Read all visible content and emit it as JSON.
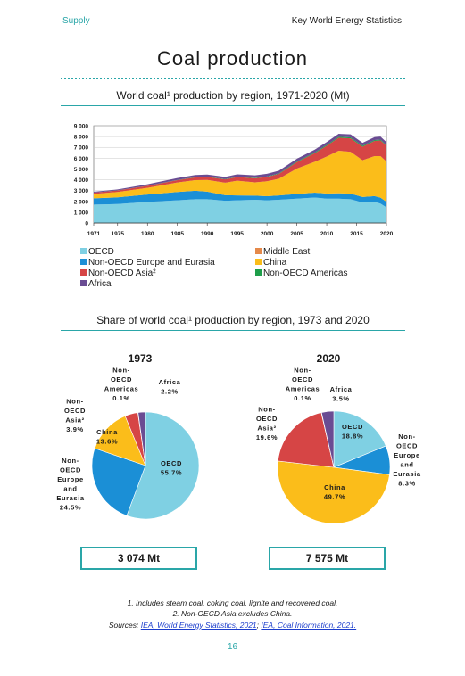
{
  "header": {
    "left": "Supply",
    "right": "Key World Energy Statistics"
  },
  "title": "Coal production",
  "area_chart": {
    "title": "World coal¹ production by region, 1971-2020 (Mt)",
    "colors": {
      "OECD": "#7fd0e3",
      "Middle East": "#e5894a",
      "Non-OECD Europe and Eurasia": "#1b8fd6",
      "China": "#fbbd1a",
      "Non-OECD Asia²": "#d64545",
      "Non-OECD Americas": "#1e9e4a",
      "Africa": "#6a4c93"
    }
  },
  "legend": {
    "items": [
      {
        "label": "OECD",
        "color": "#7fd0e3"
      },
      {
        "label": "Middle East",
        "color": "#e5894a"
      },
      {
        "label": "Non-OECD Europe and Eurasia",
        "color": "#1b8fd6"
      },
      {
        "label": "China",
        "color": "#fbbd1a"
      },
      {
        "label": "Non-OECD Asia²",
        "color": "#d64545"
      },
      {
        "label": "Non-OECD Americas",
        "color": "#1e9e4a"
      },
      {
        "label": "Africa",
        "color": "#6a4c93"
      }
    ]
  },
  "pie_section": {
    "title": "Share of world coal¹ production by region, 1973 and 2020"
  },
  "totals": {
    "y1973": "3 074 Mt",
    "y2020": "7 575 Mt"
  },
  "notes": {
    "n1": "1. Includes steam coal, coking coal, lignite and recovered coal.",
    "n2": "2. Non-OECD Asia excludes China.",
    "sources_prefix": "Sources: ",
    "src1": "IEA, World Energy Statistics, 2021",
    "sep": "; ",
    "src2": "IEA, Coal Information, 2021."
  },
  "page_number": "16",
  "chart_data": [
    {
      "type": "area",
      "stacked": true,
      "title": "World coal¹ production by region, 1971-2020 (Mt)",
      "x": [
        1971,
        1975,
        1980,
        1985,
        1988,
        1990,
        1993,
        1995,
        1998,
        2000,
        2002,
        2005,
        2008,
        2010,
        2012,
        2014,
        2016,
        2018,
        2019,
        2020
      ],
      "x_ticks": [
        1971,
        1975,
        1980,
        1985,
        1990,
        1995,
        2000,
        2005,
        2010,
        2015,
        2020
      ],
      "ylim": [
        0,
        9000
      ],
      "y_ticks": [
        0,
        1000,
        2000,
        3000,
        4000,
        5000,
        6000,
        7000,
        8000,
        9000
      ],
      "y_tick_labels": [
        "0",
        "1 000",
        "2 000",
        "3 000",
        "4 000",
        "5 000",
        "6 000",
        "7 000",
        "8 000",
        "9 000"
      ],
      "series": [
        {
          "name": "OECD",
          "color": "#7fd0e3",
          "values": [
            1700,
            1750,
            1950,
            2100,
            2200,
            2200,
            2050,
            2100,
            2150,
            2100,
            2150,
            2250,
            2350,
            2250,
            2250,
            2200,
            1900,
            1950,
            1800,
            1450
          ]
        },
        {
          "name": "Non-OECD Europe and Eurasia",
          "color": "#1b8fd6",
          "values": [
            580,
            620,
            680,
            770,
            780,
            700,
            520,
            450,
            380,
            380,
            400,
            430,
            460,
            470,
            500,
            510,
            500,
            540,
            540,
            510
          ]
        },
        {
          "name": "Middle East",
          "color": "#e5894a",
          "values": [
            2,
            2,
            2,
            2,
            2,
            2,
            2,
            2,
            2,
            2,
            2,
            2,
            2,
            2,
            2,
            2,
            2,
            2,
            2,
            2
          ]
        },
        {
          "name": "China",
          "color": "#fbbd1a",
          "values": [
            400,
            500,
            620,
            870,
            980,
            1080,
            1150,
            1360,
            1230,
            1380,
            1550,
            2350,
            2850,
            3430,
            3940,
            3870,
            3410,
            3700,
            3850,
            3720
          ]
        },
        {
          "name": "Non-OECD Asia²",
          "color": "#d64545",
          "values": [
            120,
            140,
            180,
            220,
            260,
            280,
            310,
            340,
            380,
            400,
            440,
            600,
            800,
            1000,
            1200,
            1250,
            1250,
            1400,
            1450,
            1480
          ]
        },
        {
          "name": "Non-OECD Americas",
          "color": "#1e9e4a",
          "values": [
            10,
            12,
            15,
            20,
            25,
            28,
            30,
            35,
            40,
            45,
            50,
            60,
            70,
            80,
            90,
            95,
            90,
            85,
            80,
            60
          ]
        },
        {
          "name": "Africa",
          "color": "#6a4c93",
          "values": [
            75,
            80,
            130,
            175,
            190,
            190,
            200,
            210,
            230,
            240,
            245,
            255,
            260,
            265,
            270,
            275,
            270,
            270,
            275,
            265
          ]
        }
      ]
    },
    {
      "type": "pie",
      "title": "1973",
      "total": "3 074 Mt",
      "slices": [
        {
          "name": "OECD",
          "label": "OECD\n55.7%",
          "value": 55.7,
          "color": "#7fd0e3"
        },
        {
          "name": "Non-OECD Europe and Eurasia",
          "label": "Non-\nOECD\nEurope\nand\nEurasia\n24.5%",
          "value": 24.5,
          "color": "#1b8fd6"
        },
        {
          "name": "China",
          "label": "China\n13.6%",
          "value": 13.6,
          "color": "#fbbd1a"
        },
        {
          "name": "Non-OECD Asia²",
          "label": "Non-\nOECD\nAsia²\n3.9%",
          "value": 3.9,
          "color": "#d64545"
        },
        {
          "name": "Non-OECD Americas",
          "label": "Non-\nOECD\nAmericas\n0.1%",
          "value": 0.1,
          "color": "#1e9e4a"
        },
        {
          "name": "Africa",
          "label": "Africa\n2.2%",
          "value": 2.2,
          "color": "#6a4c93"
        }
      ]
    },
    {
      "type": "pie",
      "title": "2020",
      "total": "7 575 Mt",
      "slices": [
        {
          "name": "OECD",
          "label": "OECD\n18.8%",
          "value": 18.8,
          "color": "#7fd0e3"
        },
        {
          "name": "Non-OECD Europe and Eurasia",
          "label": "Non-\nOECD\nEurope\nand\nEurasia\n8.3%",
          "value": 8.3,
          "color": "#1b8fd6"
        },
        {
          "name": "China",
          "label": "China\n49.7%",
          "value": 49.7,
          "color": "#fbbd1a"
        },
        {
          "name": "Non-OECD Asia²",
          "label": "Non-\nOECD\nAsia²\n19.6%",
          "value": 19.6,
          "color": "#d64545"
        },
        {
          "name": "Non-OECD Americas",
          "label": "Non-\nOECD\nAmericas\n0.1%",
          "value": 0.1,
          "color": "#1e9e4a"
        },
        {
          "name": "Africa",
          "label": "Africa\n3.5%",
          "value": 3.5,
          "color": "#6a4c93"
        }
      ]
    }
  ]
}
